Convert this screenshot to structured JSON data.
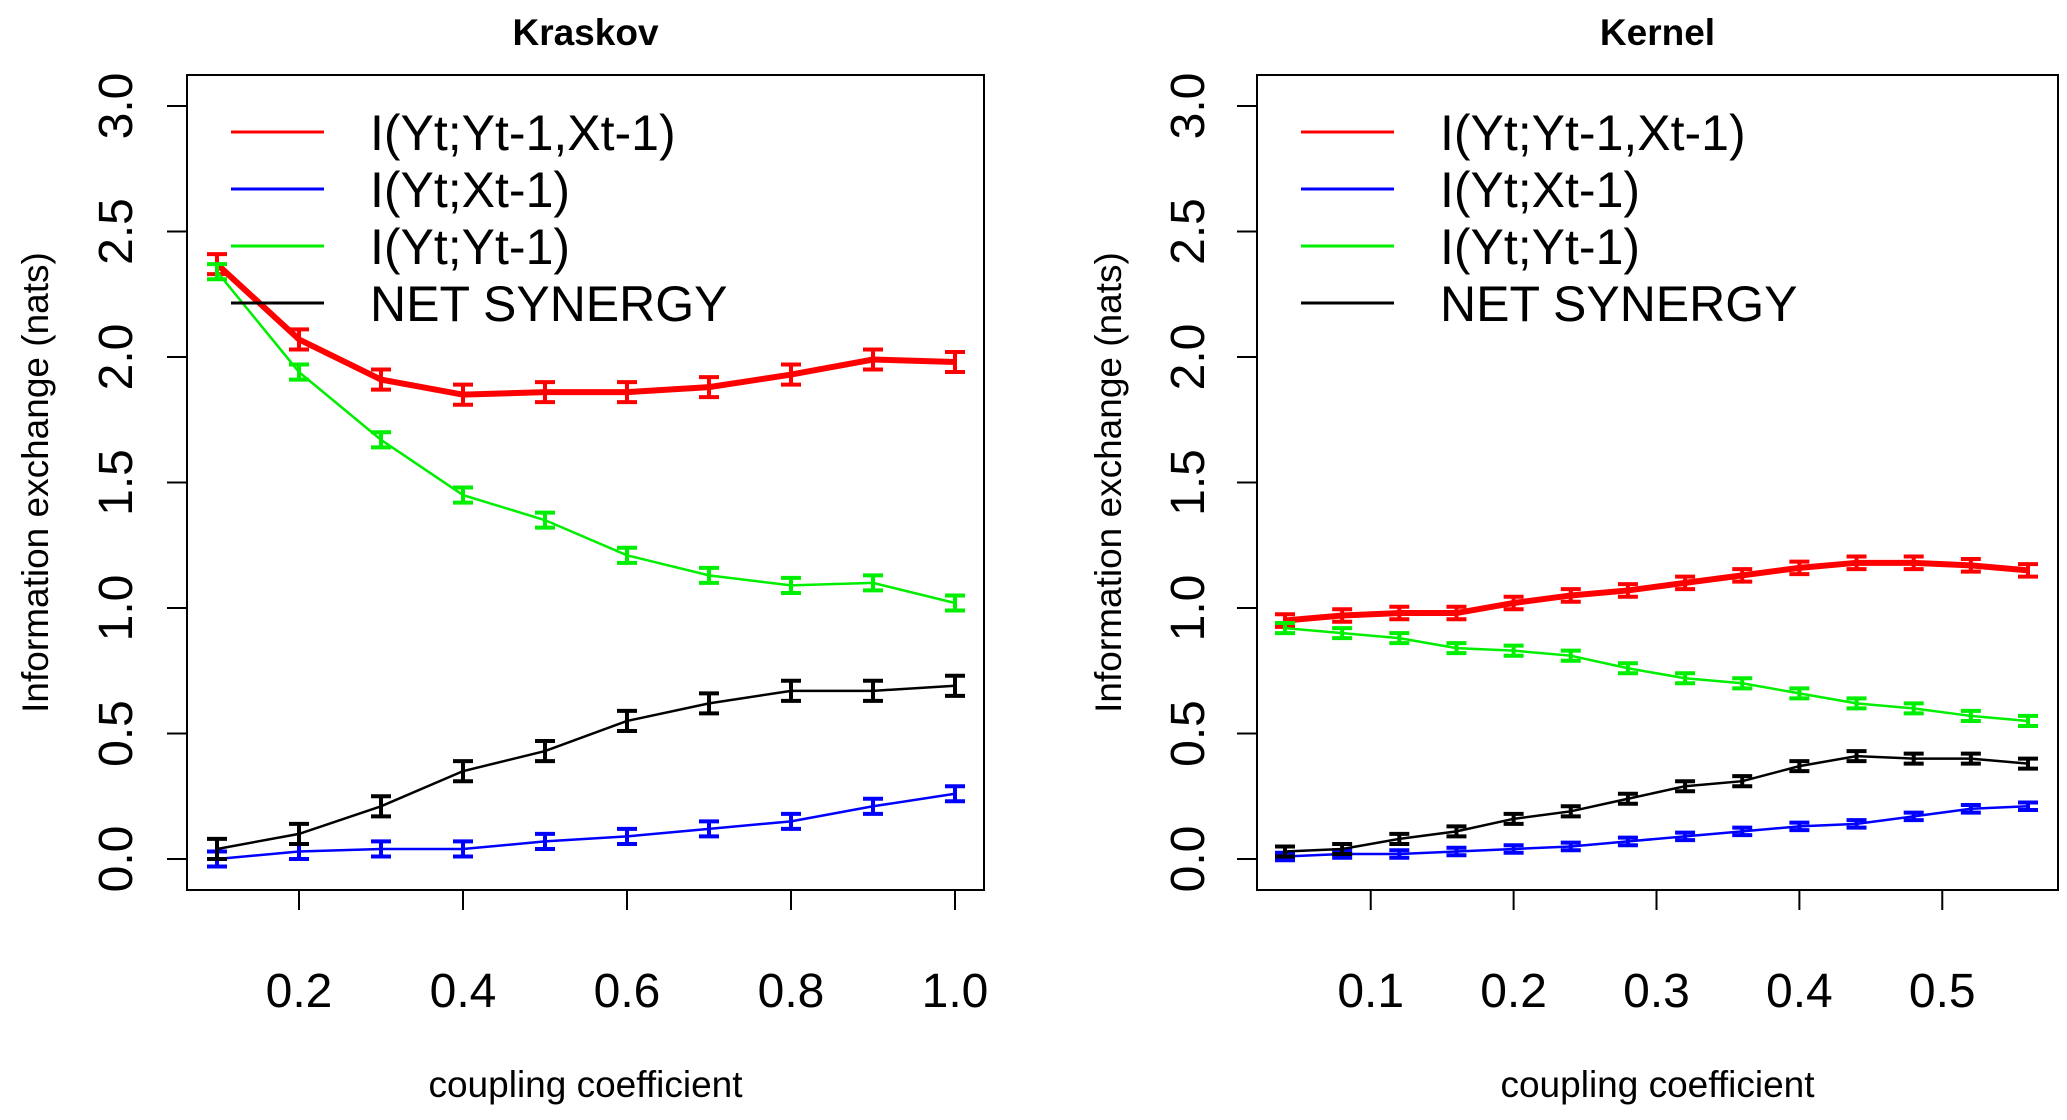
{
  "chart_data": [
    {
      "type": "line",
      "title": "Kraskov",
      "xlabel": "coupling coefficient",
      "ylabel": "Information exchange (nats)",
      "xlim": [
        0.1,
        1.0
      ],
      "ylim": [
        0.0,
        3.0
      ],
      "xticks": [
        "0.2",
        "0.4",
        "0.6",
        "0.8",
        "1.0"
      ],
      "yticks": [
        "0.0",
        "0.5",
        "1.0",
        "1.5",
        "2.0",
        "2.5",
        "3.0"
      ],
      "legend_position": "top-left",
      "grid": false,
      "x": [
        0.1,
        0.2,
        0.3,
        0.4,
        0.5,
        0.6,
        0.7,
        0.8,
        0.9,
        1.0
      ],
      "series": [
        {
          "name": "I(Yt;Yt-1,Xt-1)",
          "color": "#ff0000",
          "values": [
            2.37,
            2.07,
            1.91,
            1.85,
            1.86,
            1.86,
            1.88,
            1.93,
            1.99,
            1.98
          ],
          "error": 0.04
        },
        {
          "name": "I(Yt;Xt-1)",
          "color": "#0000ff",
          "values": [
            0.0,
            0.03,
            0.04,
            0.04,
            0.07,
            0.09,
            0.12,
            0.15,
            0.21,
            0.26
          ],
          "error": 0.03
        },
        {
          "name": "I(Yt;Yt-1)",
          "color": "#00ee00",
          "values": [
            2.34,
            1.94,
            1.67,
            1.45,
            1.35,
            1.21,
            1.13,
            1.09,
            1.1,
            1.02
          ],
          "error": 0.03
        },
        {
          "name": "NET SYNERGY",
          "color": "#000000",
          "values": [
            0.04,
            0.1,
            0.21,
            0.35,
            0.43,
            0.55,
            0.62,
            0.67,
            0.67,
            0.69
          ],
          "error": 0.04
        }
      ]
    },
    {
      "type": "line",
      "title": "Kernel",
      "xlabel": "coupling coefficient",
      "ylabel": "Information exchange (nats)",
      "xlim": [
        0.04,
        0.56
      ],
      "ylim": [
        0.0,
        3.0
      ],
      "xticks": [
        "0.1",
        "0.2",
        "0.3",
        "0.4",
        "0.5"
      ],
      "yticks": [
        "0.0",
        "0.5",
        "1.0",
        "1.5",
        "2.0",
        "2.5",
        "3.0"
      ],
      "legend_position": "top-left",
      "grid": false,
      "x": [
        0.04,
        0.08,
        0.12,
        0.16,
        0.2,
        0.24,
        0.28,
        0.32,
        0.36,
        0.4,
        0.44,
        0.48,
        0.52,
        0.56
      ],
      "series": [
        {
          "name": "I(Yt;Yt-1,Xt-1)",
          "color": "#ff0000",
          "values": [
            0.95,
            0.97,
            0.98,
            0.98,
            1.02,
            1.05,
            1.07,
            1.1,
            1.13,
            1.16,
            1.18,
            1.18,
            1.17,
            1.15
          ],
          "error": 0.025
        },
        {
          "name": "I(Yt;Xt-1)",
          "color": "#0000ff",
          "values": [
            0.01,
            0.02,
            0.02,
            0.03,
            0.04,
            0.05,
            0.07,
            0.09,
            0.11,
            0.13,
            0.14,
            0.17,
            0.2,
            0.21
          ],
          "error": 0.015
        },
        {
          "name": "I(Yt;Yt-1)",
          "color": "#00ee00",
          "values": [
            0.92,
            0.9,
            0.88,
            0.84,
            0.83,
            0.81,
            0.76,
            0.72,
            0.7,
            0.66,
            0.62,
            0.6,
            0.57,
            0.55
          ],
          "error": 0.02
        },
        {
          "name": "NET SYNERGY",
          "color": "#000000",
          "values": [
            0.03,
            0.04,
            0.08,
            0.11,
            0.16,
            0.19,
            0.24,
            0.29,
            0.31,
            0.37,
            0.41,
            0.4,
            0.4,
            0.38
          ],
          "error": 0.02
        }
      ]
    }
  ]
}
